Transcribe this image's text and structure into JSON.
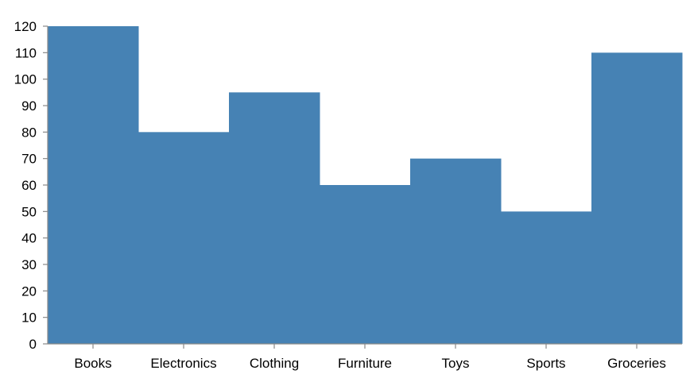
{
  "chart_data": {
    "type": "bar",
    "categories": [
      "Books",
      "Electronics",
      "Clothing",
      "Furniture",
      "Toys",
      "Sports",
      "Groceries"
    ],
    "values": [
      120,
      80,
      95,
      60,
      70,
      50,
      110
    ],
    "ylim": [
      0,
      120
    ],
    "yticks": [
      0,
      10,
      20,
      30,
      40,
      50,
      60,
      70,
      80,
      90,
      100,
      110,
      120
    ],
    "grid": false,
    "legend": "none",
    "colors": {
      "bar": "#4682b4",
      "axis": "#888888",
      "text": "#000000"
    }
  }
}
